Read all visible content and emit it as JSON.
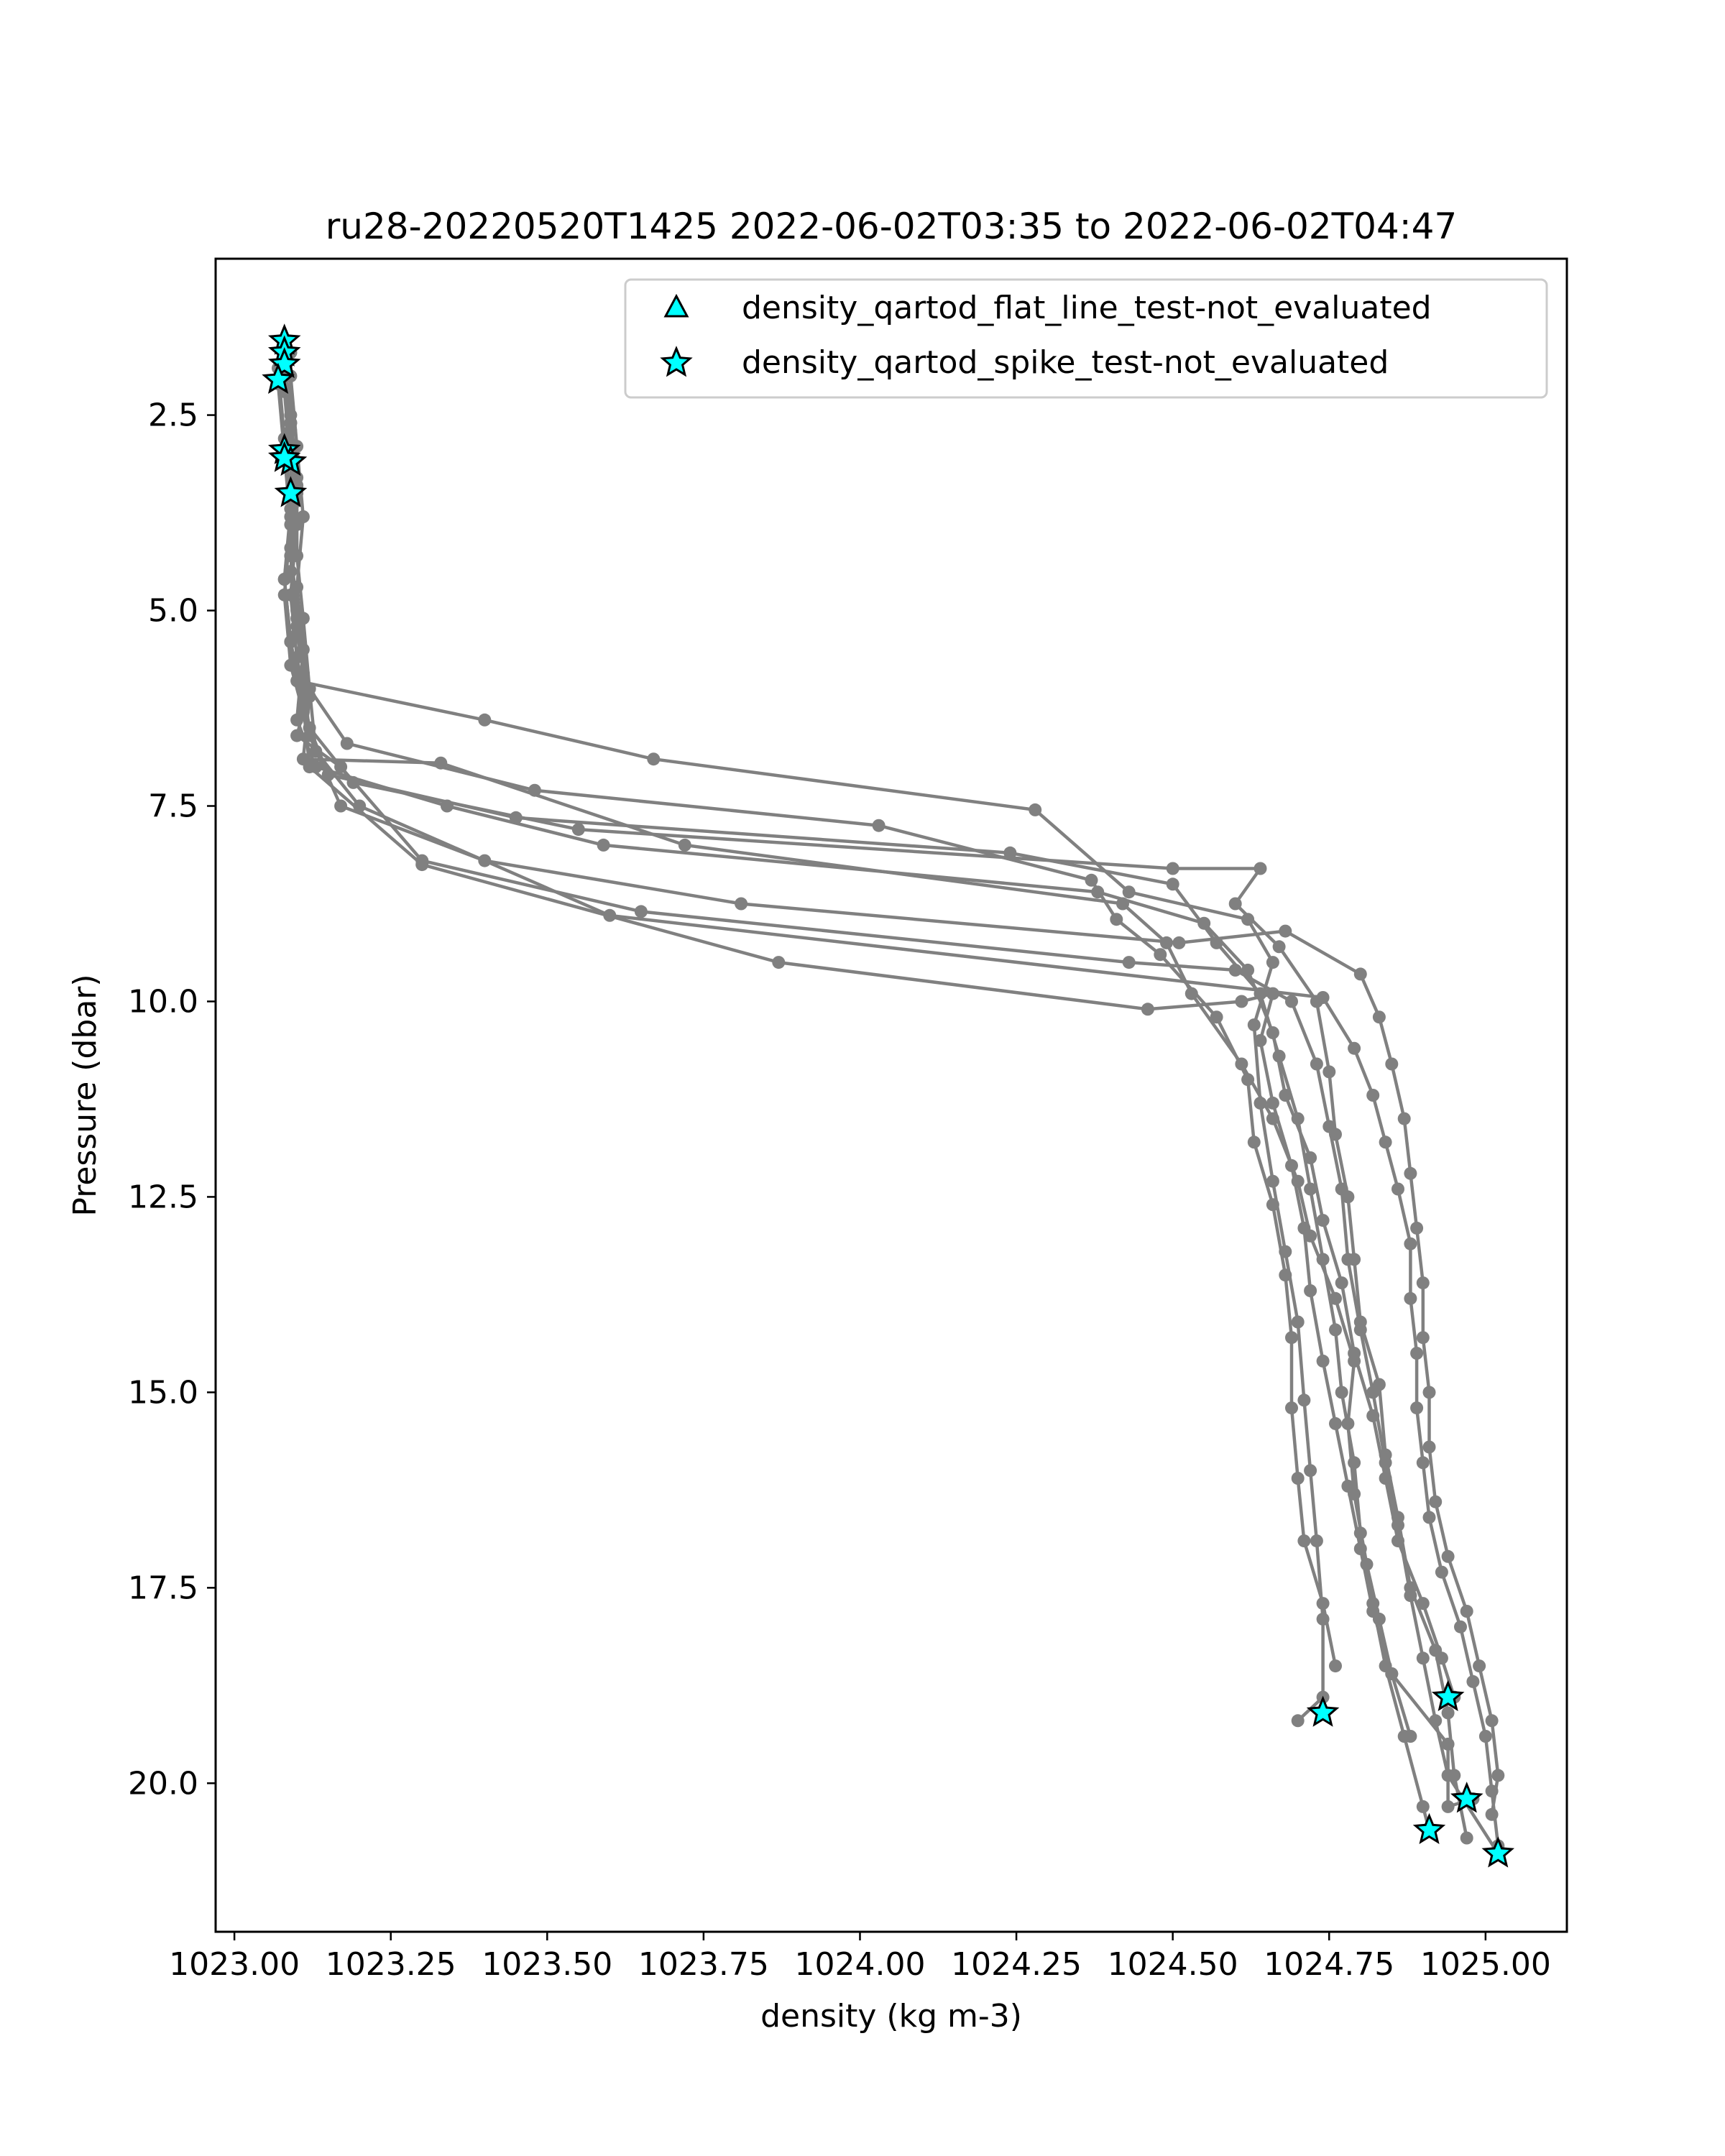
{
  "chart_data": {
    "type": "scatter",
    "title": "ru28-20220520T1425 2022-06-02T03:35 to 2022-06-02T04:47",
    "xlabel": "density (kg m-3)",
    "ylabel": "Pressure (dbar)",
    "xlim": [
      1022.97,
      1025.13
    ],
    "ylim": [
      21.9,
      0.5
    ],
    "y_inverted": true,
    "grid": false,
    "legend_position": "top-right",
    "x_ticks": [
      1023.0,
      1023.25,
      1023.5,
      1023.75,
      1024.0,
      1024.25,
      1024.5,
      1024.75,
      1025.0
    ],
    "x_tick_labels": [
      "1023.00",
      "1023.25",
      "1023.50",
      "1023.75",
      "1024.00",
      "1024.25",
      "1024.50",
      "1024.75",
      "1025.00"
    ],
    "y_ticks": [
      2.5,
      5.0,
      7.5,
      10.0,
      12.5,
      15.0,
      17.5,
      20.0
    ],
    "y_tick_labels": [
      "2.5",
      "5.0",
      "7.5",
      "10.0",
      "12.5",
      "15.0",
      "17.5",
      "20.0"
    ],
    "profile_color": "#808080",
    "flag_color": "#00ffff",
    "profiles": [
      {
        "points": [
          [
            1023.08,
            1.6
          ],
          [
            1023.08,
            2.0
          ],
          [
            1023.09,
            2.9
          ],
          [
            1023.09,
            3.8
          ],
          [
            1023.08,
            4.6
          ],
          [
            1023.09,
            5.4
          ],
          [
            1023.1,
            5.9
          ],
          [
            1023.4,
            6.4
          ],
          [
            1023.67,
            6.9
          ],
          [
            1024.28,
            7.55
          ],
          [
            1024.43,
            8.6
          ],
          [
            1024.62,
            8.95
          ],
          [
            1024.66,
            9.5
          ],
          [
            1024.63,
            10.3
          ],
          [
            1024.64,
            11.3
          ],
          [
            1024.66,
            12.3
          ],
          [
            1024.68,
            13.2
          ],
          [
            1024.7,
            14.1
          ],
          [
            1024.71,
            15.1
          ],
          [
            1024.72,
            16.0
          ],
          [
            1024.73,
            16.9
          ],
          [
            1024.74,
            17.9
          ],
          [
            1024.74,
            18.9
          ],
          [
            1024.7,
            19.2
          ]
        ]
      },
      {
        "points": [
          [
            1023.08,
            1.8
          ],
          [
            1023.09,
            2.6
          ],
          [
            1023.1,
            3.5
          ],
          [
            1023.09,
            4.3
          ],
          [
            1023.1,
            5.2
          ],
          [
            1023.12,
            6.0
          ],
          [
            1023.18,
            6.7
          ],
          [
            1023.48,
            7.3
          ],
          [
            1024.03,
            7.75
          ],
          [
            1024.37,
            8.45
          ],
          [
            1024.41,
            8.95
          ],
          [
            1024.48,
            9.4
          ],
          [
            1024.57,
            10.2
          ],
          [
            1024.62,
            11.0
          ],
          [
            1024.63,
            11.8
          ],
          [
            1024.66,
            12.6
          ],
          [
            1024.68,
            13.5
          ],
          [
            1024.69,
            14.3
          ],
          [
            1024.69,
            15.2
          ],
          [
            1024.7,
            16.1
          ],
          [
            1024.71,
            16.9
          ],
          [
            1024.74,
            17.7
          ],
          [
            1024.76,
            18.5
          ]
        ]
      },
      {
        "points": [
          [
            1023.08,
            1.9
          ],
          [
            1023.09,
            2.7
          ],
          [
            1023.1,
            3.6
          ],
          [
            1023.09,
            4.5
          ],
          [
            1023.1,
            5.3
          ],
          [
            1023.12,
            6.1
          ],
          [
            1023.11,
            6.9
          ],
          [
            1023.33,
            6.95
          ],
          [
            1023.72,
            8.0
          ],
          [
            1024.42,
            8.75
          ],
          [
            1024.49,
            9.25
          ],
          [
            1024.53,
            9.9
          ],
          [
            1024.61,
            10.8
          ],
          [
            1024.66,
            11.5
          ],
          [
            1024.7,
            12.3
          ],
          [
            1024.72,
            13.0
          ],
          [
            1024.76,
            13.8
          ],
          [
            1024.79,
            14.6
          ],
          [
            1024.78,
            15.4
          ],
          [
            1024.79,
            16.3
          ],
          [
            1024.81,
            17.2
          ],
          [
            1024.83,
            17.9
          ],
          [
            1024.85,
            18.6
          ],
          [
            1024.94,
            19.5
          ],
          [
            1024.94,
            20.3
          ],
          [
            1024.98,
            20.2
          ]
        ]
      },
      {
        "points": [
          [
            1023.09,
            2.0
          ],
          [
            1023.1,
            2.9
          ],
          [
            1023.11,
            3.8
          ],
          [
            1023.1,
            4.7
          ],
          [
            1023.11,
            5.5
          ],
          [
            1023.1,
            6.4
          ],
          [
            1023.13,
            7.0
          ],
          [
            1023.34,
            7.5
          ],
          [
            1023.59,
            8.0
          ],
          [
            1024.38,
            8.6
          ],
          [
            1024.55,
            9.0
          ],
          [
            1024.62,
            9.6
          ],
          [
            1024.66,
            10.4
          ],
          [
            1024.68,
            11.2
          ],
          [
            1024.72,
            12.0
          ],
          [
            1024.74,
            12.8
          ],
          [
            1024.77,
            13.6
          ],
          [
            1024.79,
            14.5
          ],
          [
            1024.82,
            15.3
          ],
          [
            1024.84,
            16.1
          ],
          [
            1024.86,
            16.9
          ],
          [
            1024.9,
            17.7
          ],
          [
            1024.93,
            18.4
          ],
          [
            1024.95,
            18.9
          ]
        ]
      },
      {
        "points": [
          [
            1023.07,
            2.1
          ],
          [
            1023.08,
            3.0
          ],
          [
            1023.09,
            3.9
          ],
          [
            1023.08,
            4.8
          ],
          [
            1023.09,
            5.7
          ],
          [
            1023.11,
            6.3
          ],
          [
            1023.15,
            7.1
          ],
          [
            1023.45,
            7.65
          ],
          [
            1024.24,
            8.1
          ],
          [
            1024.5,
            8.5
          ],
          [
            1024.57,
            9.25
          ],
          [
            1024.64,
            9.9
          ],
          [
            1024.67,
            10.7
          ],
          [
            1024.7,
            11.5
          ],
          [
            1024.72,
            12.4
          ],
          [
            1024.74,
            13.3
          ],
          [
            1024.76,
            14.2
          ],
          [
            1024.77,
            15.0
          ],
          [
            1024.79,
            15.9
          ],
          [
            1024.8,
            16.8
          ],
          [
            1024.82,
            17.7
          ],
          [
            1024.84,
            18.5
          ],
          [
            1024.87,
            19.4
          ],
          [
            1024.9,
            20.3
          ],
          [
            1024.91,
            20.6
          ]
        ]
      },
      {
        "points": [
          [
            1023.08,
            2.2
          ],
          [
            1023.09,
            3.1
          ],
          [
            1023.1,
            3.9
          ],
          [
            1023.09,
            4.8
          ],
          [
            1023.1,
            5.6
          ],
          [
            1023.12,
            6.5
          ],
          [
            1023.19,
            7.2
          ],
          [
            1023.55,
            7.8
          ],
          [
            1024.5,
            8.3
          ],
          [
            1024.64,
            8.3
          ],
          [
            1024.6,
            8.75
          ],
          [
            1024.67,
            9.3
          ],
          [
            1024.73,
            10.0
          ],
          [
            1024.75,
            10.9
          ],
          [
            1024.76,
            11.7
          ],
          [
            1024.78,
            12.5
          ],
          [
            1024.79,
            13.3
          ],
          [
            1024.8,
            14.1
          ],
          [
            1024.83,
            14.9
          ],
          [
            1024.84,
            15.8
          ],
          [
            1024.86,
            16.6
          ],
          [
            1024.88,
            17.5
          ],
          [
            1024.92,
            18.3
          ],
          [
            1024.94,
            19.1
          ],
          [
            1024.95,
            19.9
          ],
          [
            1024.97,
            20.7
          ]
        ]
      },
      {
        "points": [
          [
            1023.09,
            1.7
          ],
          [
            1023.09,
            2.6
          ],
          [
            1023.1,
            3.4
          ],
          [
            1023.09,
            4.3
          ],
          [
            1023.1,
            5.1
          ],
          [
            1023.12,
            6.0
          ],
          [
            1023.1,
            6.6
          ],
          [
            1023.17,
            7.0
          ],
          [
            1023.3,
            8.2
          ],
          [
            1023.65,
            8.85
          ],
          [
            1024.43,
            9.5
          ],
          [
            1024.6,
            9.6
          ],
          [
            1024.69,
            10.0
          ],
          [
            1024.73,
            10.8
          ],
          [
            1024.75,
            11.6
          ],
          [
            1024.77,
            12.4
          ],
          [
            1024.78,
            13.3
          ],
          [
            1024.8,
            14.2
          ],
          [
            1024.82,
            15.0
          ],
          [
            1024.84,
            15.9
          ],
          [
            1024.86,
            16.7
          ],
          [
            1024.88,
            17.6
          ],
          [
            1024.9,
            18.4
          ],
          [
            1024.92,
            19.2
          ],
          [
            1024.94,
            19.9
          ],
          [
            1025.02,
            20.9
          ]
        ]
      },
      {
        "points": [
          [
            1023.07,
            1.9
          ],
          [
            1023.08,
            2.8
          ],
          [
            1023.09,
            3.7
          ],
          [
            1023.08,
            4.6
          ],
          [
            1023.09,
            5.4
          ],
          [
            1023.11,
            6.2
          ],
          [
            1023.12,
            7.0
          ],
          [
            1023.3,
            8.25
          ],
          [
            1023.87,
            9.5
          ],
          [
            1024.46,
            10.1
          ],
          [
            1024.61,
            10.0
          ],
          [
            1024.66,
            9.9
          ],
          [
            1024.64,
            10.5
          ],
          [
            1024.66,
            11.3
          ],
          [
            1024.69,
            12.1
          ],
          [
            1024.71,
            12.9
          ],
          [
            1024.72,
            13.7
          ],
          [
            1024.74,
            14.6
          ],
          [
            1024.76,
            15.4
          ],
          [
            1024.78,
            16.2
          ],
          [
            1024.8,
            17.0
          ],
          [
            1024.82,
            17.8
          ],
          [
            1024.85,
            18.6
          ],
          [
            1024.88,
            19.4
          ]
        ]
      },
      {
        "points": [
          [
            1023.08,
            1.75
          ],
          [
            1023.09,
            2.5
          ],
          [
            1023.1,
            3.3
          ],
          [
            1023.09,
            4.2
          ],
          [
            1023.1,
            5.0
          ],
          [
            1023.11,
            5.8
          ],
          [
            1023.12,
            6.6
          ],
          [
            1023.17,
            7.5
          ],
          [
            1023.4,
            8.2
          ],
          [
            1023.81,
            8.75
          ],
          [
            1024.51,
            9.25
          ],
          [
            1024.68,
            9.1
          ],
          [
            1024.8,
            9.65
          ],
          [
            1024.83,
            10.2
          ],
          [
            1024.85,
            10.8
          ],
          [
            1024.87,
            11.5
          ],
          [
            1024.88,
            12.2
          ],
          [
            1024.89,
            12.9
          ],
          [
            1024.9,
            13.6
          ],
          [
            1024.9,
            14.3
          ],
          [
            1024.91,
            15.0
          ],
          [
            1024.91,
            15.7
          ],
          [
            1024.92,
            16.4
          ],
          [
            1024.94,
            17.1
          ],
          [
            1024.97,
            17.8
          ],
          [
            1024.99,
            18.5
          ],
          [
            1025.01,
            19.2
          ],
          [
            1025.02,
            19.9
          ],
          [
            1025.01,
            20.4
          ]
        ]
      },
      {
        "points": [
          [
            1023.09,
            1.7
          ],
          [
            1023.09,
            2.6
          ],
          [
            1023.1,
            3.4
          ],
          [
            1023.1,
            4.3
          ],
          [
            1023.11,
            5.1
          ],
          [
            1023.12,
            6.0
          ],
          [
            1023.13,
            6.8
          ],
          [
            1023.2,
            7.5
          ],
          [
            1023.6,
            8.9
          ],
          [
            1024.74,
            9.95
          ],
          [
            1024.79,
            10.6
          ],
          [
            1024.82,
            11.2
          ],
          [
            1024.84,
            11.8
          ],
          [
            1024.86,
            12.4
          ],
          [
            1024.88,
            13.1
          ],
          [
            1024.88,
            13.8
          ],
          [
            1024.89,
            14.5
          ],
          [
            1024.89,
            15.2
          ],
          [
            1024.9,
            15.9
          ],
          [
            1024.91,
            16.6
          ],
          [
            1024.93,
            17.3
          ],
          [
            1024.96,
            18.0
          ],
          [
            1024.98,
            18.7
          ],
          [
            1025.0,
            19.4
          ],
          [
            1025.01,
            20.1
          ],
          [
            1025.02,
            20.8
          ]
        ]
      }
    ],
    "flagged_points": [
      [
        1023.08,
        1.55
      ],
      [
        1023.08,
        1.7
      ],
      [
        1023.08,
        1.85
      ],
      [
        1023.07,
        2.05
      ],
      [
        1023.08,
        2.95
      ],
      [
        1023.09,
        3.1
      ],
      [
        1023.08,
        3.05
      ],
      [
        1023.09,
        3.5
      ],
      [
        1024.74,
        19.1
      ],
      [
        1024.94,
        18.9
      ],
      [
        1024.97,
        20.2
      ],
      [
        1024.91,
        20.6
      ],
      [
        1025.02,
        20.9
      ]
    ],
    "legend": [
      {
        "label": "density_qartod_flat_line_test-not_evaluated",
        "marker": "triangle"
      },
      {
        "label": "density_qartod_spike_test-not_evaluated",
        "marker": "star"
      }
    ]
  }
}
